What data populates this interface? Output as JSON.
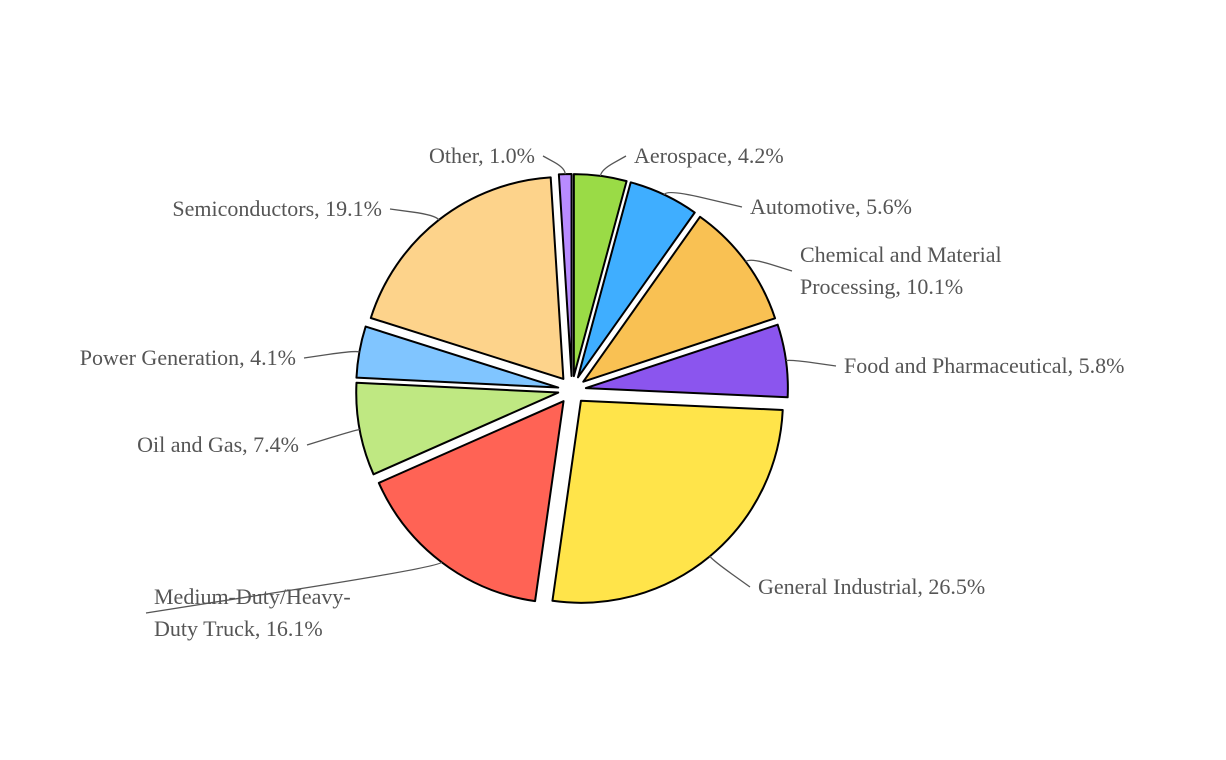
{
  "chart_data": {
    "type": "pie",
    "title": "",
    "legend": "none",
    "slices": [
      {
        "name": "Aerospace",
        "value": 4.2,
        "label": "Aerospace, 4.2%",
        "color": "#9ADB46"
      },
      {
        "name": "Automotive",
        "value": 5.6,
        "label": "Automotive, 5.6%",
        "color": "#3FAEFF"
      },
      {
        "name": "Chemical and Material Processing",
        "value": 10.1,
        "label": [
          "Chemical and Material",
          "Processing, 10.1%"
        ],
        "color": "#F9C153"
      },
      {
        "name": "Food and Pharmaceutical",
        "value": 5.8,
        "label": "Food and Pharmaceutical, 5.8%",
        "color": "#8B55EE"
      },
      {
        "name": "General Industrial",
        "value": 26.5,
        "label": "General Industrial, 26.5%",
        "color": "#FFE44A"
      },
      {
        "name": "Medium-Duty/Heavy-Duty Truck",
        "value": 16.1,
        "label": [
          "Medium-Duty/Heavy-",
          "Duty Truck, 16.1%"
        ],
        "color": "#FF6355"
      },
      {
        "name": "Oil and Gas",
        "value": 7.4,
        "label": "Oil and Gas, 7.4%",
        "color": "#BFE882"
      },
      {
        "name": "Power Generation",
        "value": 4.1,
        "label": "Power Generation, 4.1%",
        "color": "#80C5FF"
      },
      {
        "name": "Semiconductors",
        "value": 19.1,
        "label": "Semiconductors, 19.1%",
        "color": "#FDD38B"
      },
      {
        "name": "Other",
        "value": 1.0,
        "label": "Other, 1.0%",
        "color": "#B88BFF"
      }
    ]
  }
}
